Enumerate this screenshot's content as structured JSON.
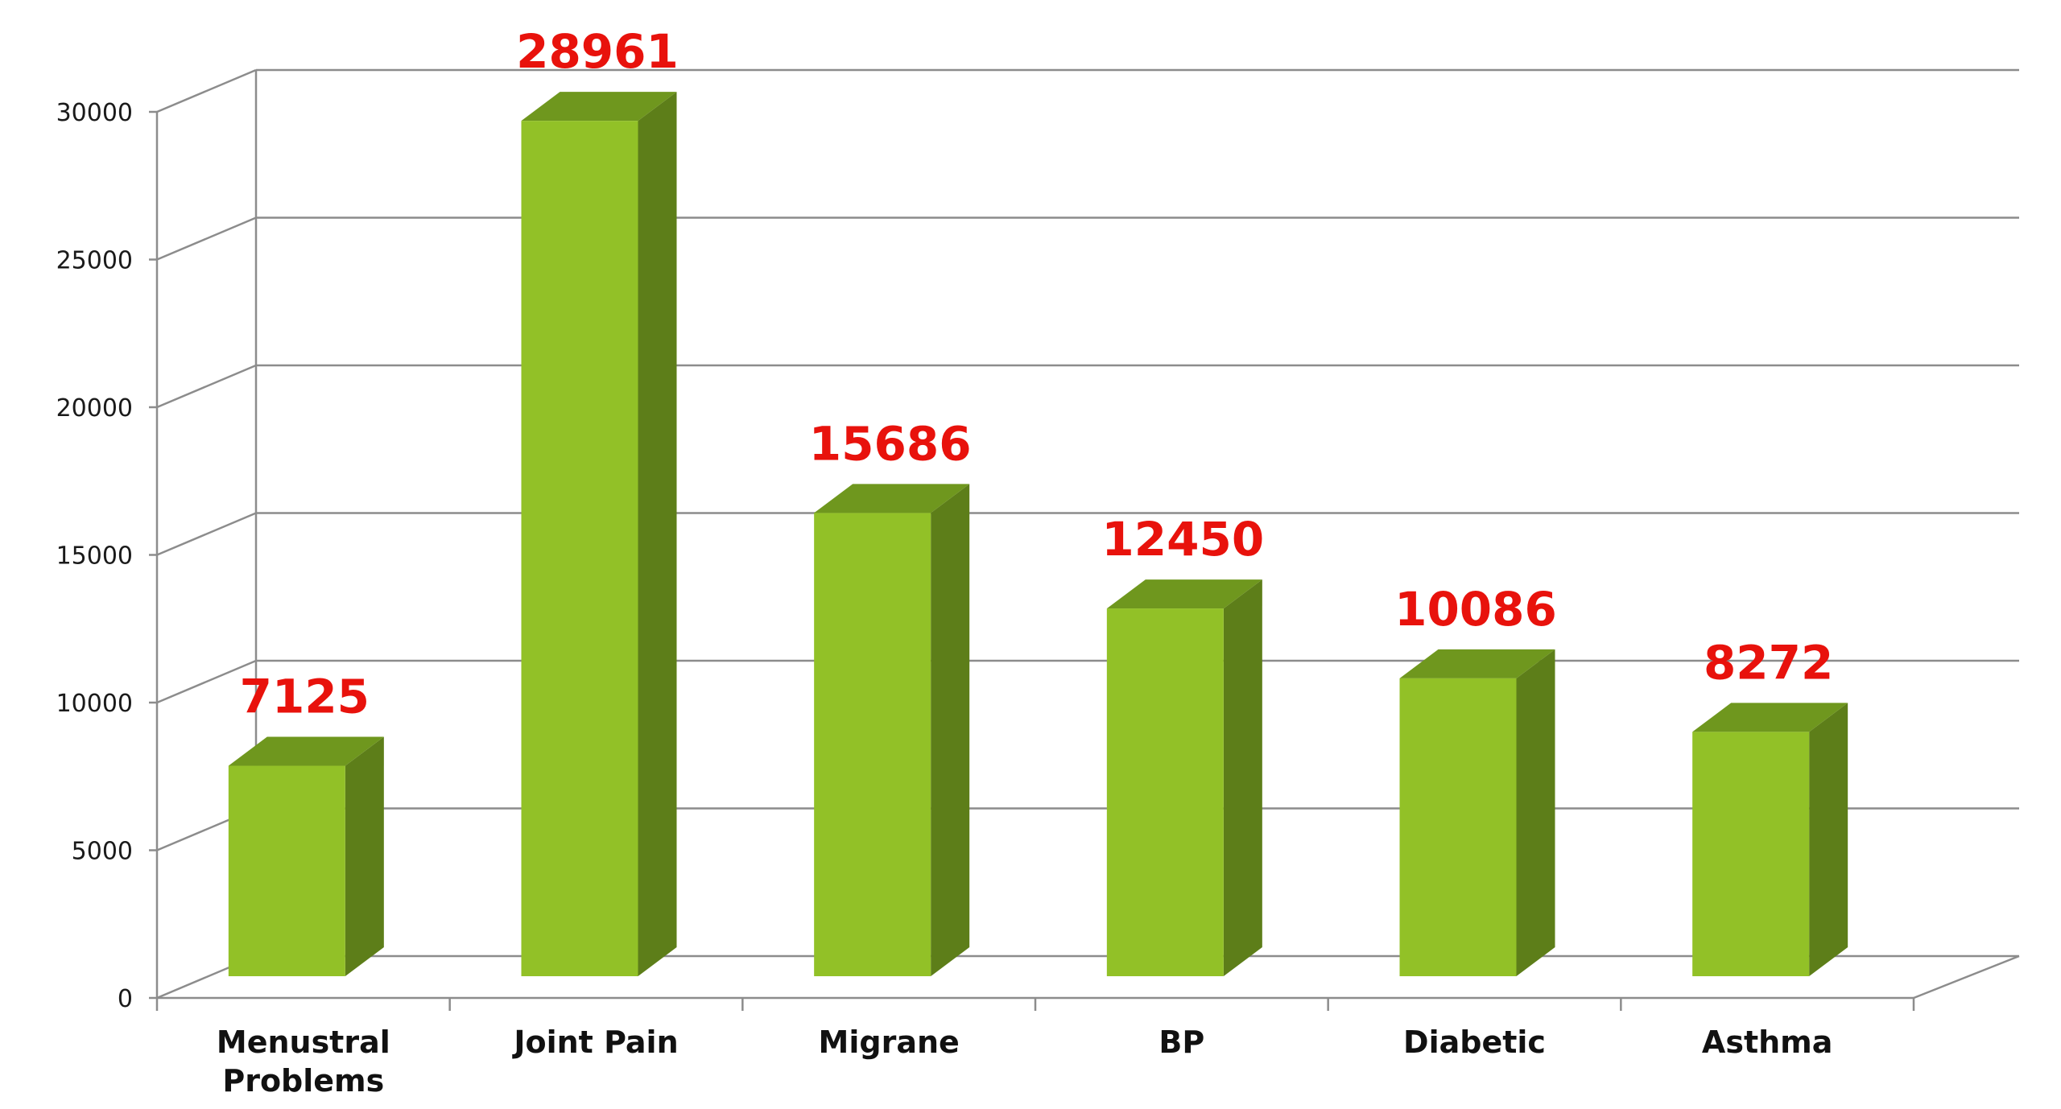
{
  "chart_data": {
    "type": "bar",
    "categories": [
      [
        "Menustral",
        "Problems"
      ],
      [
        "Joint Pain"
      ],
      [
        "Migrane"
      ],
      [
        "BP"
      ],
      [
        "Diabetic"
      ],
      [
        "Asthma"
      ]
    ],
    "values": [
      7125,
      28961,
      15686,
      12450,
      10086,
      8272
    ],
    "data_labels": [
      "7125",
      "28961",
      "15686",
      "12450",
      "10086",
      "8272"
    ],
    "yticks": [
      0,
      5000,
      10000,
      15000,
      20000,
      25000,
      30000
    ],
    "ytick_labels": [
      "0",
      "5000",
      "10000",
      "15000",
      "20000",
      "25000",
      "30000"
    ],
    "ylim": [
      0,
      30000
    ],
    "grid": true,
    "three_d": true,
    "legend": "none",
    "title": "",
    "xlabel": "",
    "ylabel": "",
    "colors": {
      "bar_front": "#92C127",
      "bar_top": "#6F971E",
      "bar_side": "#5D7E19",
      "data_label": "#E8120C",
      "grid": "#8C8C8C"
    }
  }
}
